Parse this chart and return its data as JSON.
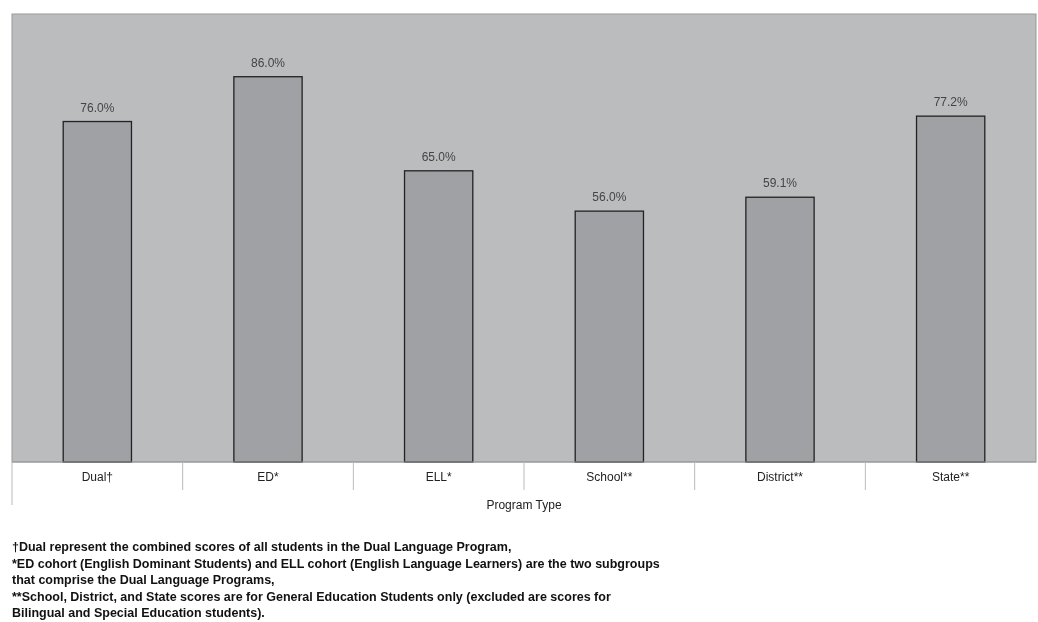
{
  "chart_data": {
    "type": "bar",
    "xlabel": "Program Type",
    "categories": [
      "Dual†",
      "ED*",
      "ELL*",
      "School**",
      "District**",
      "State**"
    ],
    "values": [
      76.0,
      86.0,
      65.0,
      56.0,
      59.1,
      77.2
    ],
    "value_labels": [
      "76.0%",
      "86.0%",
      "65.0%",
      "56.0%",
      "59.1%",
      "77.2%"
    ],
    "color": "#a0a1a5",
    "ylim": [
      0,
      100
    ],
    "annotations": [
      "†Dual represent the combined scores of all students in the Dual Language Program,",
      "*ED cohort (English Dominant Students) and ELL cohort (English Language Learners) are the two subgroups that comprise the Dual Language Programs,",
      "**School, District, and State scores are for General Education Students only (excluded are scores for Bilingual and Special Education students)."
    ]
  }
}
